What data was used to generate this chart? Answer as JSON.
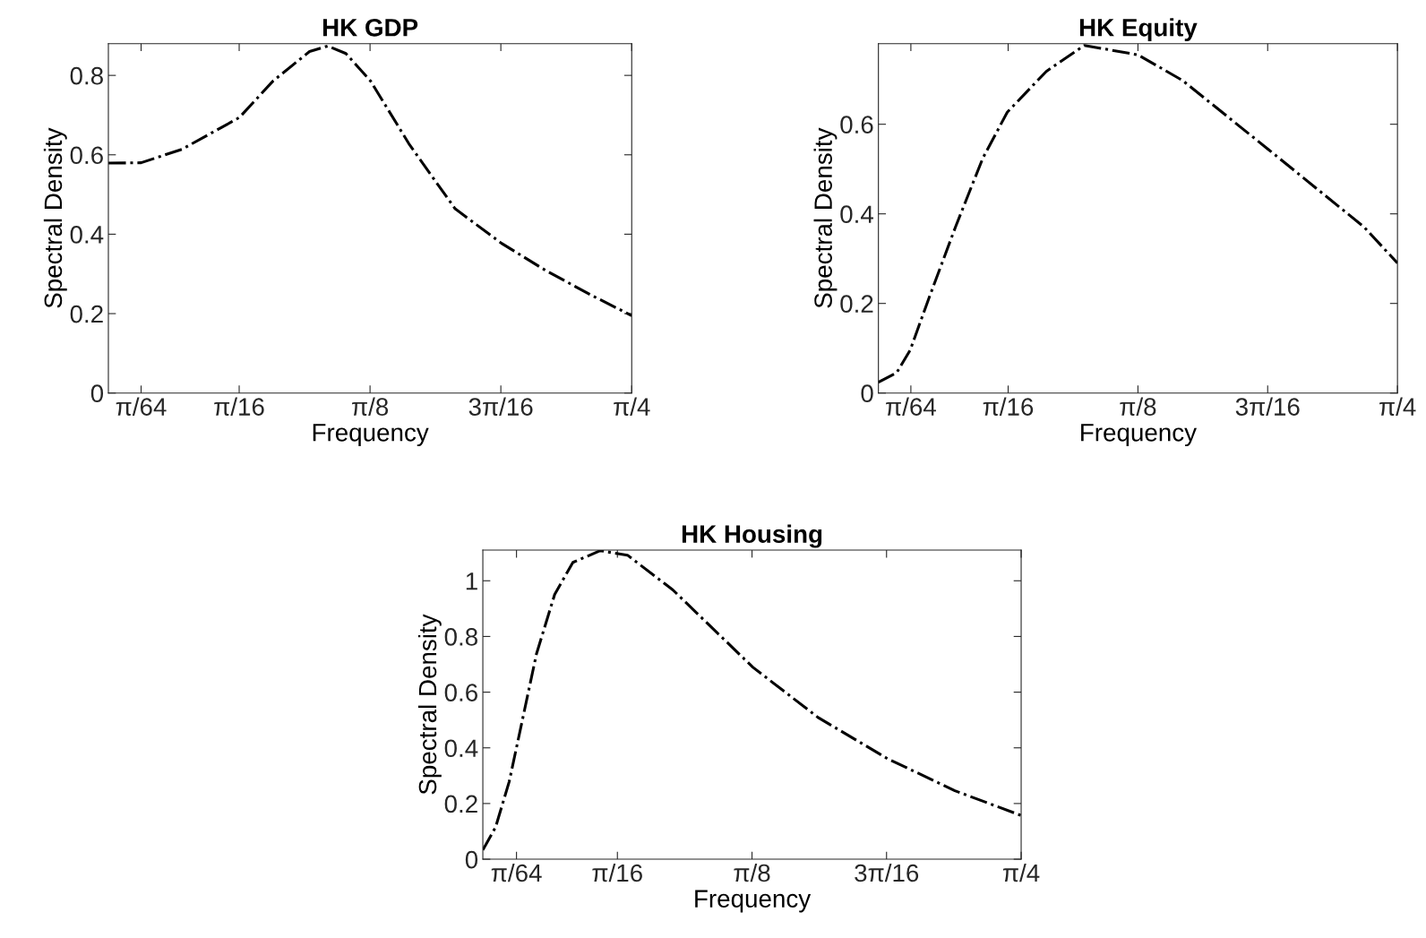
{
  "chart_data": [
    {
      "type": "line",
      "title": "HK GDP",
      "xlabel": "Frequency",
      "ylabel": "Spectral Density",
      "xlim": [
        0,
        0.7854
      ],
      "ylim": [
        0,
        0.88
      ],
      "xticks": [
        {
          "value": 0.0491,
          "label": "π/64"
        },
        {
          "value": 0.1963,
          "label": "π/16"
        },
        {
          "value": 0.3927,
          "label": "π/8"
        },
        {
          "value": 0.589,
          "label": "3π/16"
        },
        {
          "value": 0.7854,
          "label": "π/4"
        }
      ],
      "yticks": [
        0,
        0.2,
        0.4,
        0.6,
        0.8
      ],
      "line_style": "dashdot",
      "grid": false,
      "series": [
        {
          "color": "#000000",
          "x": [
            0,
            0.0492,
            0.1106,
            0.1967,
            0.2472,
            0.3019,
            0.3292,
            0.3565,
            0.3934,
            0.4521,
            0.5204,
            0.5901,
            0.657,
            0.7253,
            0.7854
          ],
          "values": [
            0.579,
            0.58,
            0.614,
            0.694,
            0.786,
            0.86,
            0.874,
            0.855,
            0.786,
            0.625,
            0.464,
            0.377,
            0.308,
            0.246,
            0.195
          ]
        }
      ]
    },
    {
      "type": "line",
      "title": "HK Equity",
      "xlabel": "Frequency",
      "ylabel": "Spectral Density",
      "xlim": [
        0,
        0.7854
      ],
      "ylim": [
        0,
        0.78
      ],
      "xticks": [
        {
          "value": 0.0491,
          "label": "π/64"
        },
        {
          "value": 0.1963,
          "label": "π/16"
        },
        {
          "value": 0.3927,
          "label": "π/8"
        },
        {
          "value": 0.589,
          "label": "3π/16"
        },
        {
          "value": 0.7854,
          "label": "π/4"
        }
      ],
      "yticks": [
        0,
        0.2,
        0.4,
        0.6
      ],
      "line_style": "dashdot",
      "grid": false,
      "series": [
        {
          "color": "#000000",
          "x": [
            0,
            0.0275,
            0.0481,
            0.0755,
            0.1167,
            0.1579,
            0.195,
            0.254,
            0.3117,
            0.3927,
            0.46,
            0.589,
            0.6659,
            0.7345,
            0.7854
          ],
          "values": [
            0.024,
            0.045,
            0.096,
            0.208,
            0.371,
            0.524,
            0.627,
            0.718,
            0.776,
            0.755,
            0.698,
            0.545,
            0.453,
            0.371,
            0.29
          ]
        }
      ]
    },
    {
      "type": "line",
      "title": "HK Housing",
      "xlabel": "Frequency",
      "ylabel": "Spectral Density",
      "xlim": [
        0,
        0.7854
      ],
      "ylim": [
        0,
        1.11
      ],
      "xticks": [
        {
          "value": 0.0491,
          "label": "π/64"
        },
        {
          "value": 0.1963,
          "label": "π/16"
        },
        {
          "value": 0.3927,
          "label": "π/8"
        },
        {
          "value": 0.589,
          "label": "3π/16"
        },
        {
          "value": 0.7854,
          "label": "π/4"
        }
      ],
      "yticks": [
        0,
        0.2,
        0.4,
        0.6,
        0.8,
        1
      ],
      "line_style": "dashdot",
      "grid": false,
      "series": [
        {
          "color": "#000000",
          "x": [
            0,
            0.0186,
            0.0385,
            0.0584,
            0.0783,
            0.1048,
            0.1314,
            0.1712,
            0.211,
            0.2773,
            0.3941,
            0.4897,
            0.5905,
            0.6887,
            0.7854
          ],
          "values": [
            0.033,
            0.115,
            0.279,
            0.508,
            0.738,
            0.951,
            1.066,
            1.108,
            1.092,
            0.967,
            0.689,
            0.508,
            0.361,
            0.246,
            0.157
          ]
        }
      ]
    }
  ]
}
